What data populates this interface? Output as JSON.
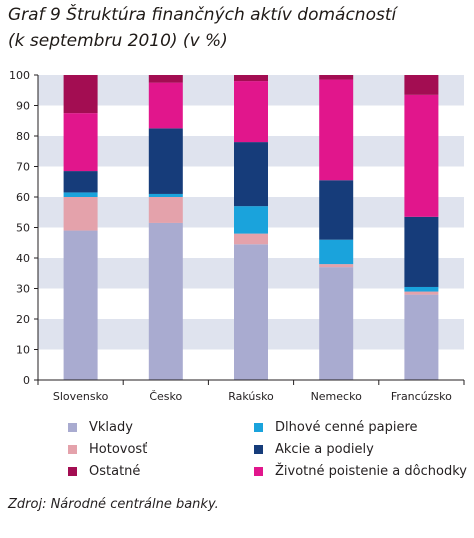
{
  "chart_data": {
    "type": "bar",
    "stacked": true,
    "title_line1": "Graf 9 Štruktúra finančných aktív domácností",
    "title_line2": "(k septembru 2010) (v %)",
    "categories": [
      "Slovensko",
      "Česko",
      "Rakúsko",
      "Nemecko",
      "Francúzsko"
    ],
    "ylim": [
      0,
      100
    ],
    "yticks": [
      "0",
      "10",
      "20",
      "30",
      "40",
      "50",
      "60",
      "70",
      "80",
      "90",
      "100"
    ],
    "grid": "horizontal bands",
    "legend_position": "bottom",
    "series": [
      {
        "name": "Vklady",
        "color": "#a9abd0",
        "values": [
          49,
          51.5,
          44.5,
          37,
          28
        ]
      },
      {
        "name": "Hotovosť",
        "color": "#e4a2ab",
        "values": [
          11,
          8.5,
          3.5,
          1,
          1
        ]
      },
      {
        "name": "Dlhové cenné papiere",
        "color": "#1aa3dc",
        "values": [
          1.5,
          1,
          9,
          8,
          1.5
        ]
      },
      {
        "name": "Akcie a podiely",
        "color": "#163c7a",
        "values": [
          7,
          21.5,
          21,
          19.5,
          23
        ]
      },
      {
        "name": "Životné poistenie a dôchodky",
        "color": "#e1168c",
        "values": [
          19,
          15,
          20,
          33,
          40
        ]
      },
      {
        "name": "Ostatné",
        "color": "#a30d52",
        "values": [
          12.5,
          2.5,
          2,
          1.5,
          6.5
        ]
      }
    ]
  },
  "legend_order": [
    "Vklady",
    "Dlhové cenné papiere",
    "Hotovosť",
    "Akcie a podiely",
    "Ostatné",
    "Životné poistenie a dôchodky"
  ],
  "source": "Zdroj: Národné centrálne banky.",
  "colors": {
    "band": "#dfe3ee",
    "axis": "#231f20"
  }
}
